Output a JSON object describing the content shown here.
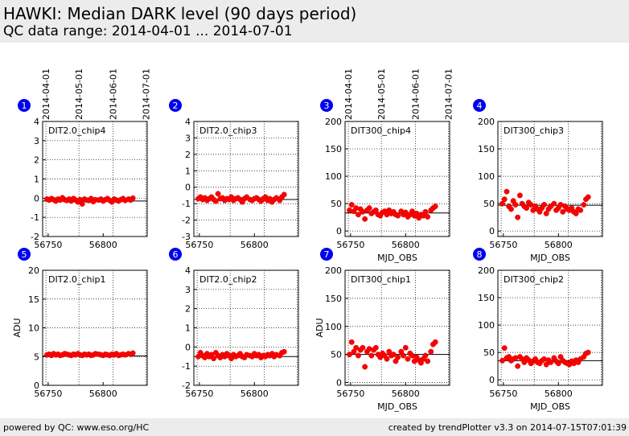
{
  "header": {
    "title": "HAWKI: Median DARK level (90 days period)",
    "subtitle": "QC data range: 2014-04-01 ... 2014-07-01"
  },
  "footer": {
    "left": "powered by QC: www.eso.org/HC",
    "right": "created by trendPlotter v3.3 on 2014-07-15T07:01:39"
  },
  "colors": {
    "points": "#ff0000",
    "badge": "#0000ee",
    "grid": "#000000",
    "band": "#ececec"
  },
  "chart_data": [
    {
      "type": "scatter",
      "panel": "1",
      "label": "DIT2.0_chip4",
      "xlim": [
        56745,
        56840
      ],
      "ylim": [
        -2,
        4
      ],
      "xticks": [
        56750,
        56800
      ],
      "yticks": [
        -2,
        -1,
        0,
        1,
        2,
        3,
        4
      ],
      "ylabel": "",
      "xlabel": "",
      "ref_line": -0.15,
      "date_ticks": [
        "2014-04-01",
        "2014-05-01",
        "2014-06-01",
        "2014-07-01"
      ],
      "series": [
        {
          "x": [
            56749,
            56751,
            56753,
            56755,
            56757,
            56759,
            56761,
            56763,
            56765,
            56767,
            56769,
            56771,
            56773,
            56775,
            56777,
            56779,
            56781,
            56783,
            56785,
            56787,
            56789,
            56791,
            56793,
            56796,
            56798,
            56800,
            56802,
            56804,
            56806,
            56808,
            56810,
            56812,
            56814,
            56816,
            56818,
            56820,
            56823,
            56825,
            56827
          ],
          "y": [
            -0.05,
            -0.1,
            -0.02,
            -0.08,
            -0.15,
            -0.05,
            -0.1,
            0.02,
            -0.08,
            -0.12,
            -0.05,
            -0.15,
            -0.02,
            -0.1,
            -0.2,
            -0.08,
            -0.3,
            -0.05,
            -0.1,
            -0.12,
            -0.02,
            -0.18,
            -0.08,
            -0.1,
            -0.05,
            -0.15,
            -0.08,
            -0.02,
            -0.12,
            -0.2,
            -0.05,
            -0.1,
            -0.15,
            -0.08,
            -0.02,
            -0.12,
            -0.05,
            -0.1,
            0.0
          ]
        }
      ]
    },
    {
      "type": "scatter",
      "panel": "2",
      "label": "DIT2.0_chip3",
      "xlim": [
        56745,
        56840
      ],
      "ylim": [
        -3,
        4
      ],
      "xticks": [
        56750,
        56800
      ],
      "yticks": [
        -3,
        -2,
        -1,
        0,
        1,
        2,
        3,
        4
      ],
      "ylabel": "",
      "xlabel": "",
      "ref_line": -0.75,
      "series": [
        {
          "x": [
            56749,
            56751,
            56753,
            56755,
            56757,
            56759,
            56761,
            56763,
            56765,
            56767,
            56769,
            56771,
            56773,
            56775,
            56777,
            56779,
            56781,
            56783,
            56785,
            56787,
            56789,
            56791,
            56793,
            56796,
            56798,
            56800,
            56802,
            56804,
            56806,
            56808,
            56810,
            56812,
            56814,
            56816,
            56818,
            56820,
            56823,
            56825,
            56827
          ],
          "y": [
            -0.7,
            -0.6,
            -0.75,
            -0.65,
            -0.8,
            -0.7,
            -0.6,
            -0.75,
            -0.85,
            -0.4,
            -0.7,
            -0.65,
            -0.8,
            -0.7,
            -0.75,
            -0.6,
            -0.8,
            -0.7,
            -0.65,
            -0.75,
            -0.9,
            -0.7,
            -0.6,
            -0.75,
            -0.8,
            -0.7,
            -0.65,
            -0.75,
            -0.85,
            -0.7,
            -0.6,
            -0.8,
            -0.7,
            -0.9,
            -0.75,
            -0.65,
            -0.8,
            -0.6,
            -0.45
          ]
        }
      ]
    },
    {
      "type": "scatter",
      "panel": "3",
      "label": "DIT300_chip4",
      "xlim": [
        56745,
        56840
      ],
      "ylim": [
        -10,
        200
      ],
      "xticks": [
        56750,
        56800
      ],
      "yticks": [
        0,
        50,
        100,
        150,
        200
      ],
      "ylabel": "",
      "xlabel": "MJD_OBS",
      "ref_line": 33,
      "date_ticks": [
        "2014-04-01",
        "2014-05-01",
        "2014-06-01",
        "2014-07-01"
      ],
      "series": [
        {
          "x": [
            56749,
            56751,
            56753,
            56755,
            56757,
            56759,
            56761,
            56763,
            56765,
            56767,
            56769,
            56771,
            56773,
            56775,
            56777,
            56779,
            56781,
            56783,
            56785,
            56787,
            56789,
            56791,
            56793,
            56796,
            56798,
            56800,
            56802,
            56804,
            56806,
            56808,
            56810,
            56812,
            56814,
            56816,
            56818,
            56820,
            56823,
            56825,
            56827
          ],
          "y": [
            38,
            48,
            36,
            42,
            30,
            40,
            35,
            22,
            38,
            42,
            32,
            35,
            38,
            30,
            28,
            34,
            36,
            30,
            38,
            32,
            35,
            30,
            28,
            36,
            30,
            34,
            26,
            30,
            36,
            28,
            32,
            24,
            30,
            28,
            35,
            26,
            38,
            42,
            45
          ]
        }
      ]
    },
    {
      "type": "scatter",
      "panel": "4",
      "label": "DIT300_chip3",
      "xlim": [
        56745,
        56840
      ],
      "ylim": [
        -10,
        200
      ],
      "xticks": [
        56750,
        56800
      ],
      "yticks": [
        0,
        50,
        100,
        150,
        200
      ],
      "ylabel": "",
      "xlabel": "MJD_OBS",
      "ref_line": 47,
      "series": [
        {
          "x": [
            56749,
            56751,
            56753,
            56755,
            56757,
            56759,
            56761,
            56763,
            56765,
            56767,
            56769,
            56771,
            56773,
            56775,
            56777,
            56779,
            56781,
            56783,
            56785,
            56787,
            56789,
            56791,
            56793,
            56796,
            56798,
            56800,
            56802,
            56804,
            56806,
            56808,
            56810,
            56812,
            56814,
            56816,
            56818,
            56820,
            56823,
            56825,
            56827
          ],
          "y": [
            50,
            58,
            72,
            45,
            40,
            55,
            48,
            25,
            65,
            50,
            45,
            42,
            52,
            48,
            38,
            45,
            40,
            35,
            42,
            48,
            32,
            40,
            45,
            50,
            38,
            42,
            48,
            35,
            45,
            40,
            38,
            42,
            35,
            32,
            40,
            38,
            48,
            58,
            62
          ]
        }
      ]
    },
    {
      "type": "scatter",
      "panel": "5",
      "label": "DIT2.0_chip1",
      "xlim": [
        56745,
        56840
      ],
      "ylim": [
        0,
        20
      ],
      "xticks": [
        56750,
        56800
      ],
      "yticks": [
        0,
        5,
        10,
        15,
        20
      ],
      "ylabel": "ADU",
      "xlabel": "",
      "ref_line": 5.1,
      "series": [
        {
          "x": [
            56749,
            56751,
            56753,
            56755,
            56757,
            56759,
            56761,
            56763,
            56765,
            56767,
            56769,
            56771,
            56773,
            56775,
            56777,
            56779,
            56781,
            56783,
            56785,
            56787,
            56789,
            56791,
            56793,
            56796,
            56798,
            56800,
            56802,
            56804,
            56806,
            56808,
            56810,
            56812,
            56814,
            56816,
            56818,
            56820,
            56823,
            56825,
            56827
          ],
          "y": [
            5.3,
            5.4,
            5.2,
            5.5,
            5.3,
            5.4,
            5.2,
            5.3,
            5.5,
            5.4,
            5.3,
            5.2,
            5.4,
            5.3,
            5.5,
            5.3,
            5.2,
            5.4,
            5.3,
            5.4,
            5.2,
            5.3,
            5.5,
            5.4,
            5.3,
            5.2,
            5.4,
            5.3,
            5.2,
            5.4,
            5.3,
            5.5,
            5.2,
            5.3,
            5.4,
            5.3,
            5.5,
            5.4,
            5.6
          ]
        }
      ]
    },
    {
      "type": "scatter",
      "panel": "6",
      "label": "DIT2.0_chip2",
      "xlim": [
        56745,
        56840
      ],
      "ylim": [
        -2,
        4
      ],
      "xticks": [
        56750,
        56800
      ],
      "yticks": [
        -2,
        -1,
        0,
        1,
        2,
        3,
        4
      ],
      "ylabel": "",
      "xlabel": "",
      "ref_line": -0.5,
      "series": [
        {
          "x": [
            56749,
            56751,
            56753,
            56755,
            56757,
            56759,
            56761,
            56763,
            56765,
            56767,
            56769,
            56771,
            56773,
            56775,
            56777,
            56779,
            56781,
            56783,
            56785,
            56787,
            56789,
            56791,
            56793,
            56796,
            56798,
            56800,
            56802,
            56804,
            56806,
            56808,
            56810,
            56812,
            56814,
            56816,
            56818,
            56820,
            56823,
            56825,
            56827
          ],
          "y": [
            -0.5,
            -0.3,
            -0.45,
            -0.55,
            -0.35,
            -0.5,
            -0.4,
            -0.6,
            -0.3,
            -0.45,
            -0.55,
            -0.4,
            -0.5,
            -0.35,
            -0.45,
            -0.6,
            -0.4,
            -0.5,
            -0.45,
            -0.35,
            -0.5,
            -0.55,
            -0.4,
            -0.45,
            -0.5,
            -0.35,
            -0.45,
            -0.4,
            -0.55,
            -0.45,
            -0.5,
            -0.4,
            -0.45,
            -0.35,
            -0.5,
            -0.4,
            -0.45,
            -0.3,
            -0.25
          ]
        }
      ]
    },
    {
      "type": "scatter",
      "panel": "7",
      "label": "DIT300_chip1",
      "xlim": [
        56745,
        56840
      ],
      "ylim": [
        -5,
        200
      ],
      "xticks": [
        56750,
        56800
      ],
      "yticks": [
        0,
        50,
        100,
        150,
        200
      ],
      "ylabel": "ADU",
      "xlabel": "MJD_OBS",
      "ref_line": 50,
      "series": [
        {
          "x": [
            56749,
            56751,
            56753,
            56755,
            56757,
            56759,
            56761,
            56763,
            56765,
            56767,
            56769,
            56771,
            56773,
            56775,
            56777,
            56779,
            56781,
            56783,
            56785,
            56787,
            56789,
            56791,
            56793,
            56796,
            56798,
            56800,
            56802,
            56804,
            56806,
            56808,
            56810,
            56812,
            56814,
            56816,
            56818,
            56820,
            56823,
            56825,
            56827
          ],
          "y": [
            50,
            72,
            55,
            62,
            48,
            58,
            62,
            28,
            55,
            60,
            48,
            58,
            62,
            50,
            45,
            52,
            48,
            42,
            55,
            48,
            50,
            38,
            45,
            55,
            48,
            62,
            42,
            52,
            48,
            38,
            45,
            40,
            35,
            42,
            48,
            38,
            55,
            68,
            72
          ]
        }
      ]
    },
    {
      "type": "scatter",
      "panel": "8",
      "label": "DIT300_chip2",
      "xlim": [
        56745,
        56840
      ],
      "ylim": [
        -10,
        200
      ],
      "xticks": [
        56750,
        56800
      ],
      "yticks": [
        0,
        50,
        100,
        150,
        200
      ],
      "ylabel": "",
      "xlabel": "MJD_OBS",
      "ref_line": 35,
      "series": [
        {
          "x": [
            56749,
            56751,
            56753,
            56755,
            56757,
            56759,
            56761,
            56763,
            56765,
            56767,
            56769,
            56771,
            56773,
            56775,
            56777,
            56779,
            56781,
            56783,
            56785,
            56787,
            56789,
            56791,
            56793,
            56796,
            56798,
            56800,
            56802,
            56804,
            56806,
            56808,
            56810,
            56812,
            56814,
            56816,
            56818,
            56820,
            56823,
            56825,
            56827
          ],
          "y": [
            35,
            58,
            40,
            42,
            35,
            38,
            40,
            25,
            42,
            38,
            32,
            40,
            36,
            30,
            34,
            38,
            32,
            30,
            35,
            38,
            28,
            36,
            32,
            40,
            34,
            30,
            42,
            35,
            32,
            30,
            28,
            34,
            30,
            36,
            32,
            38,
            42,
            48,
            50
          ]
        }
      ]
    }
  ]
}
